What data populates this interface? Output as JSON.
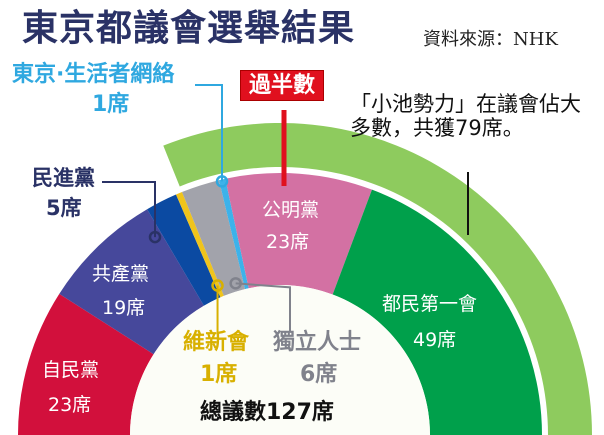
{
  "title": "東京都議會選舉結果",
  "source": "資料來源：NHK",
  "chart_data": {
    "type": "pie",
    "variant": "semicircle-parliament",
    "total_label": "總議數127席",
    "total": 127,
    "majority_label": "過半數",
    "annotation": "「小池勢力」在議會佔大多數，共獲79席。",
    "coalition": {
      "seats": 79,
      "members": [
        "都民第一會",
        "公明黨",
        "東京·生活者網絡",
        "獨立人士"
      ],
      "color": "#8ecb5e"
    },
    "series": [
      {
        "name": "自民黨",
        "seats": 23,
        "label": "23席",
        "color": "#d2103c"
      },
      {
        "name": "共產黨",
        "seats": 19,
        "label": "19席",
        "color": "#46489b"
      },
      {
        "name": "民進黨",
        "seats": 5,
        "label": "5席",
        "color": "#0b4aa2"
      },
      {
        "name": "維新會",
        "seats": 1,
        "label": "1席",
        "color": "#f0c41c"
      },
      {
        "name": "獨立人士",
        "seats": 6,
        "label": "6席",
        "color": "#a2a3ab"
      },
      {
        "name": "東京·生活者網絡",
        "seats": 1,
        "label": "1席",
        "color": "#3cb2ea"
      },
      {
        "name": "公明黨",
        "seats": 23,
        "label": "23席",
        "color": "#d371a3"
      },
      {
        "name": "都民第一會",
        "seats": 49,
        "label": "49席",
        "color": "#00a04b"
      }
    ]
  }
}
